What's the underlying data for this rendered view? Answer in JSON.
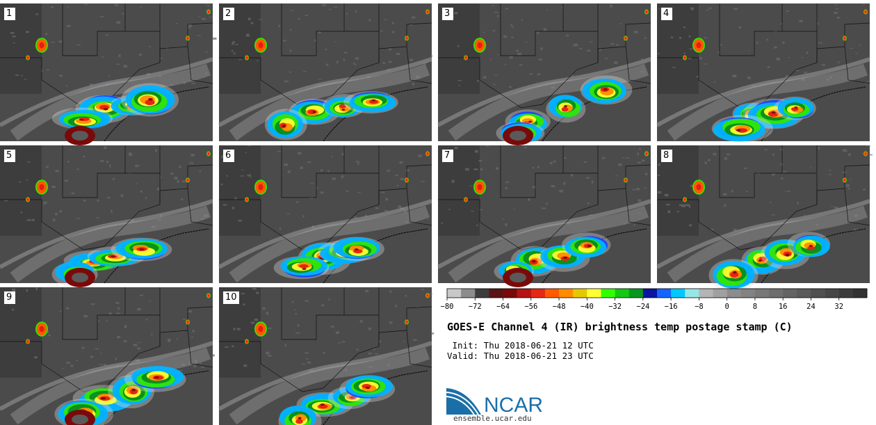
{
  "panels": [
    {
      "label": "1"
    },
    {
      "label": "2"
    },
    {
      "label": "3"
    },
    {
      "label": "4"
    },
    {
      "label": "5"
    },
    {
      "label": "6"
    },
    {
      "label": "7"
    },
    {
      "label": "8"
    },
    {
      "label": "9"
    },
    {
      "label": "10"
    }
  ],
  "colorbar": {
    "tick_labels": [
      "−80",
      "−72",
      "−64",
      "−56",
      "−48",
      "−40",
      "−32",
      "−24",
      "−16",
      "−8",
      "0",
      "8",
      "16",
      "24",
      "32"
    ],
    "tick_values": [
      -80,
      -72,
      -64,
      -56,
      -48,
      -40,
      -32,
      -24,
      -16,
      -8,
      0,
      8,
      16,
      24,
      32
    ],
    "range": [
      -80,
      40
    ],
    "step": 4,
    "colors": [
      "#c8c8c8",
      "#8c8c8c",
      "#3c3c3c",
      "#5a1414",
      "#7a0a0a",
      "#b41414",
      "#e62814",
      "#ff5a00",
      "#ff8c00",
      "#e6c800",
      "#ffff32",
      "#32ff00",
      "#14c814",
      "#0a961e",
      "#0a14a0",
      "#1464ff",
      "#00c8ff",
      "#96e6e6",
      "#b4b4b4",
      "#a0a0a0",
      "#8c8c8c",
      "#828282",
      "#787878",
      "#6e6e6e",
      "#646464",
      "#5a5a5a",
      "#505050",
      "#464646",
      "#3c3c3c",
      "#323232"
    ]
  },
  "title": "GOES-E Channel 4 (IR) brightness temp postage stamp (C)",
  "init": " Init: Thu 2018-06-21 12 UTC",
  "valid": "Valid: Thu 2018-06-21 23 UTC",
  "logo": {
    "text": "NCAR",
    "color": "#1a6fa8",
    "name": "ncar-logo"
  },
  "url": "ensemble.ucar.edu"
}
